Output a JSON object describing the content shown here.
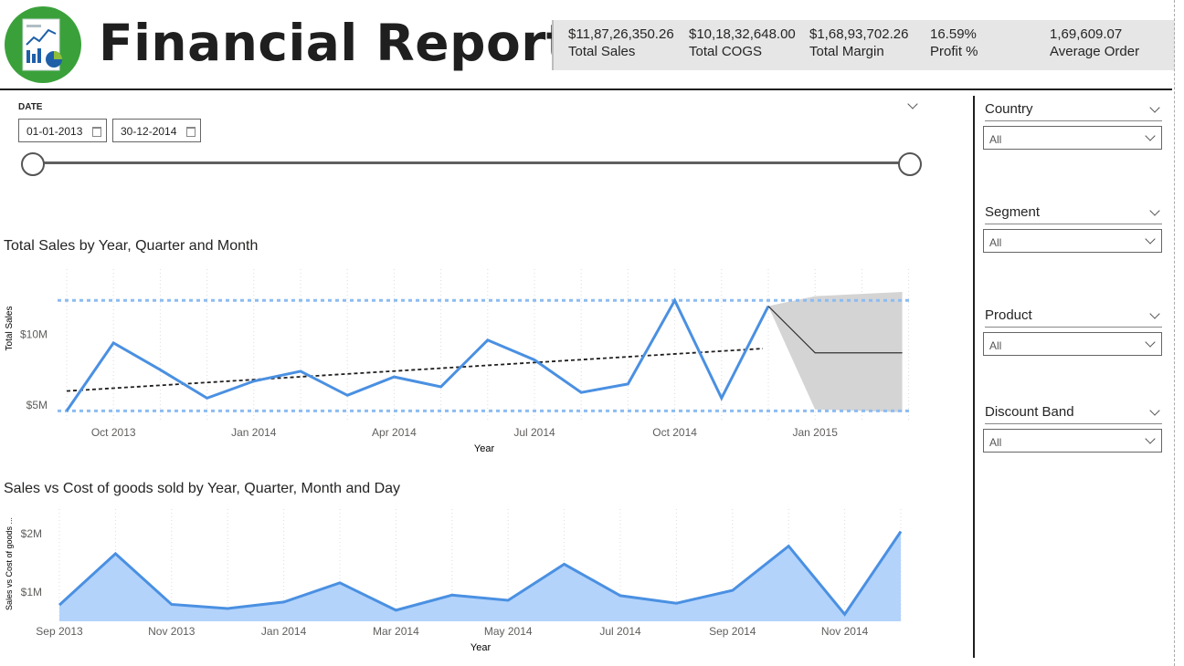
{
  "header": {
    "title": "Financial Report",
    "logo_icon": "financial-report-icon"
  },
  "kpis": [
    {
      "value": "$11,87,26,350.26",
      "label": "Total Sales"
    },
    {
      "value": "$10,18,32,648.00",
      "label": "Total COGS"
    },
    {
      "value": "$1,68,93,702.26",
      "label": "Total Margin"
    },
    {
      "value": "16.59%",
      "label": "Profit %"
    },
    {
      "value": "1,69,609.07",
      "label": "Average Order"
    }
  ],
  "date_filter": {
    "label": "DATE",
    "start": "01-01-2013",
    "end": "30-12-2014"
  },
  "slicers": [
    {
      "label": "Country",
      "value": "All"
    },
    {
      "label": "Segment",
      "value": "All"
    },
    {
      "label": "Product",
      "value": "All"
    },
    {
      "label": "Discount Band",
      "value": "All"
    }
  ],
  "colors": {
    "accent": "#4a90e2",
    "area_fill": "#b3d3fb",
    "forecast_band": "#d4d4d4",
    "logo_green": "#3aa13a"
  },
  "chart_data": [
    {
      "type": "line",
      "title": "Total Sales by Year, Quarter and Month",
      "xlabel": "Year",
      "ylabel": "Total Sales",
      "x_ticks": [
        "Oct 2013",
        "Jan 2014",
        "Apr 2014",
        "Jul 2014",
        "Oct 2014",
        "Jan 2015"
      ],
      "y_ticks": [
        "$5M",
        "$10M"
      ],
      "ylim": [
        4.3,
        13
      ],
      "x": [
        "Sep 2013",
        "Oct 2013",
        "Nov 2013",
        "Dec 2013",
        "Jan 2014",
        "Feb 2014",
        "Mar 2014",
        "Apr 2014",
        "May 2014",
        "Jun 2014",
        "Jul 2014",
        "Aug 2014",
        "Sep 2014",
        "Oct 2014",
        "Nov 2014",
        "Dec 2014"
      ],
      "series": [
        {
          "values": [
            4.6,
            9.4,
            7.5,
            5.5,
            6.7,
            7.4,
            5.7,
            7.0,
            6.3,
            9.6,
            8.2,
            5.9,
            6.5,
            12.4,
            5.5,
            12.0
          ]
        }
      ],
      "trend": {
        "start": 6.0,
        "end": 9.0
      },
      "reference_lines": [
        12.4,
        4.6
      ],
      "forecast": {
        "from": "Dec 2014",
        "to": "Feb 2015",
        "values": [
          12.0,
          8.7,
          8.7
        ],
        "upper": [
          12.0,
          12.7,
          13.0
        ],
        "lower": [
          12.0,
          4.7,
          4.5
        ]
      },
      "grid": true
    },
    {
      "type": "area",
      "title": "Sales vs Cost of goods sold by Year, Quarter, Month and Day",
      "xlabel": "Year",
      "ylabel": "Sales vs Cost of goods ...",
      "x_ticks": [
        "Sep 2013",
        "Nov 2013",
        "Jan 2014",
        "Mar 2014",
        "May 2014",
        "Jul 2014",
        "Sep 2014",
        "Nov 2014"
      ],
      "y_ticks": [
        "$1M",
        "$2M"
      ],
      "ylim": [
        0.5,
        2.3
      ],
      "x": [
        "Sep 2013",
        "Oct 2013",
        "Nov 2013",
        "Dec 2013",
        "Jan 2014",
        "Feb 2014",
        "Mar 2014",
        "Apr 2014",
        "May 2014",
        "Jun 2014",
        "Jul 2014",
        "Aug 2014",
        "Sep 2014",
        "Oct 2014",
        "Nov 2014",
        "Dec 2014"
      ],
      "series": [
        {
          "values": [
            0.78,
            1.66,
            0.79,
            0.72,
            0.83,
            1.16,
            0.69,
            0.95,
            0.86,
            1.48,
            0.94,
            0.81,
            1.03,
            1.79,
            0.62,
            2.04
          ]
        }
      ],
      "grid": true
    }
  ]
}
